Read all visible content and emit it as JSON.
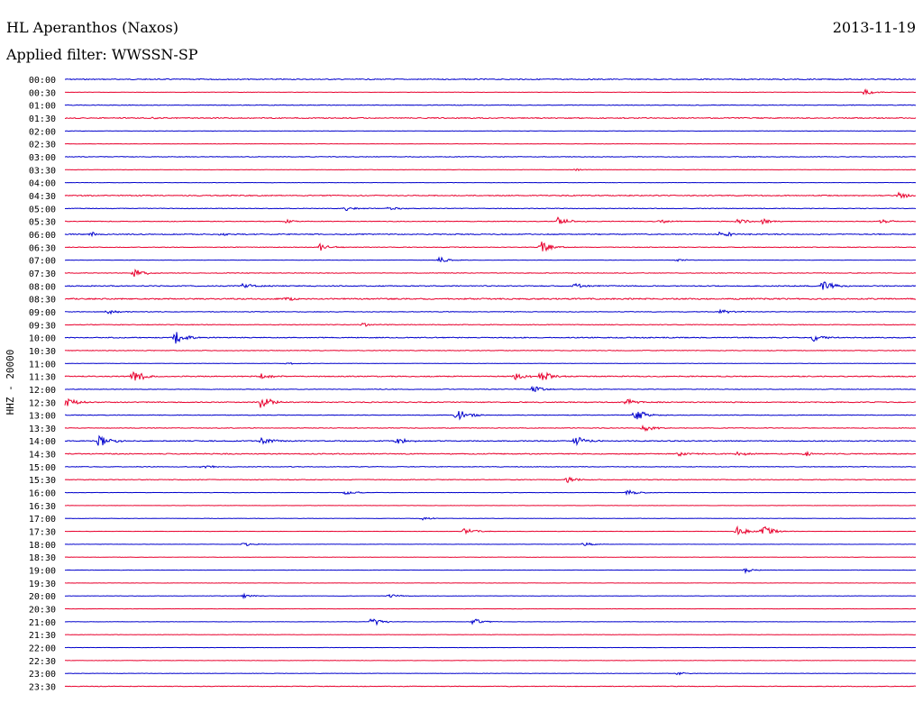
{
  "header": {
    "station": "HL Aperanthos (Naxos)",
    "date": "2013-11-19",
    "filter_prefix": "Applied filter:",
    "filter_name": "WWSSN-SP"
  },
  "chart_data": {
    "type": "line",
    "title": "HL Aperanthos (Naxos)",
    "ylabel": "HHZ - 20000",
    "colors": [
      "#0000cc",
      "#e8002d"
    ],
    "row_labels": [
      "00:00",
      "00:30",
      "01:00",
      "01:30",
      "02:00",
      "02:30",
      "03:00",
      "03:30",
      "04:00",
      "04:30",
      "05:00",
      "05:30",
      "06:00",
      "06:30",
      "07:00",
      "07:30",
      "08:00",
      "08:30",
      "09:00",
      "09:30",
      "10:00",
      "10:30",
      "11:00",
      "11:30",
      "12:00",
      "12:30",
      "13:00",
      "13:30",
      "14:00",
      "14:30",
      "15:00",
      "15:30",
      "16:00",
      "16:30",
      "17:00",
      "17:30",
      "18:00",
      "18:30",
      "19:00",
      "19:30",
      "20:00",
      "20:30",
      "21:00",
      "21:30",
      "22:00",
      "22:30",
      "23:00",
      "23:30"
    ],
    "noise_level": [
      3,
      0,
      2,
      3,
      0,
      1,
      2,
      0,
      1,
      3,
      2,
      2,
      3,
      2,
      1,
      2,
      3,
      4,
      2,
      2,
      3,
      2,
      1,
      3,
      2,
      3,
      2,
      2,
      3,
      3,
      2,
      2,
      1,
      1,
      1,
      1,
      1,
      1,
      1,
      1,
      1,
      1,
      1,
      1,
      1,
      1,
      1,
      2
    ],
    "events": [
      {
        "row": 1,
        "x": 0.94,
        "amp": 0.45
      },
      {
        "row": 3,
        "x": 0.1,
        "amp": 0.12
      },
      {
        "row": 7,
        "x": 0.6,
        "amp": 0.15
      },
      {
        "row": 9,
        "x": 0.98,
        "amp": 0.5
      },
      {
        "row": 10,
        "x": 0.33,
        "amp": 0.3
      },
      {
        "row": 10,
        "x": 0.38,
        "amp": 0.28
      },
      {
        "row": 11,
        "x": 0.26,
        "amp": 0.25
      },
      {
        "row": 11,
        "x": 0.58,
        "amp": 0.65
      },
      {
        "row": 11,
        "x": 0.7,
        "amp": 0.28
      },
      {
        "row": 11,
        "x": 0.79,
        "amp": 0.45
      },
      {
        "row": 11,
        "x": 0.82,
        "amp": 0.4
      },
      {
        "row": 11,
        "x": 0.96,
        "amp": 0.3
      },
      {
        "row": 12,
        "x": 0.03,
        "amp": 0.35
      },
      {
        "row": 12,
        "x": 0.18,
        "amp": 0.3
      },
      {
        "row": 12,
        "x": 0.77,
        "amp": 0.65
      },
      {
        "row": 13,
        "x": 0.3,
        "amp": 0.55
      },
      {
        "row": 13,
        "x": 0.56,
        "amp": 0.85
      },
      {
        "row": 14,
        "x": 0.44,
        "amp": 0.45
      },
      {
        "row": 14,
        "x": 0.72,
        "amp": 0.2
      },
      {
        "row": 15,
        "x": 0.08,
        "amp": 0.7
      },
      {
        "row": 16,
        "x": 0.21,
        "amp": 0.6
      },
      {
        "row": 16,
        "x": 0.6,
        "amp": 0.45
      },
      {
        "row": 16,
        "x": 0.89,
        "amp": 0.8
      },
      {
        "row": 17,
        "x": 0.26,
        "amp": 0.3
      },
      {
        "row": 18,
        "x": 0.05,
        "amp": 0.35
      },
      {
        "row": 18,
        "x": 0.77,
        "amp": 0.45
      },
      {
        "row": 19,
        "x": 0.35,
        "amp": 0.3
      },
      {
        "row": 20,
        "x": 0.13,
        "amp": 0.9
      },
      {
        "row": 20,
        "x": 0.88,
        "amp": 0.6
      },
      {
        "row": 22,
        "x": 0.26,
        "amp": 0.2
      },
      {
        "row": 23,
        "x": 0.08,
        "amp": 1.1
      },
      {
        "row": 23,
        "x": 0.23,
        "amp": 0.55
      },
      {
        "row": 23,
        "x": 0.53,
        "amp": 0.6
      },
      {
        "row": 23,
        "x": 0.56,
        "amp": 0.95
      },
      {
        "row": 24,
        "x": 0.55,
        "amp": 0.5
      },
      {
        "row": 25,
        "x": 0.0,
        "amp": 0.7
      },
      {
        "row": 25,
        "x": 0.23,
        "amp": 1.0
      },
      {
        "row": 25,
        "x": 0.66,
        "amp": 0.55
      },
      {
        "row": 26,
        "x": 0.46,
        "amp": 1.1
      },
      {
        "row": 26,
        "x": 0.67,
        "amp": 1.0
      },
      {
        "row": 27,
        "x": 0.68,
        "amp": 0.5
      },
      {
        "row": 28,
        "x": 0.04,
        "amp": 0.9
      },
      {
        "row": 28,
        "x": 0.23,
        "amp": 0.6
      },
      {
        "row": 28,
        "x": 0.39,
        "amp": 0.5
      },
      {
        "row": 28,
        "x": 0.6,
        "amp": 0.7
      },
      {
        "row": 29,
        "x": 0.72,
        "amp": 0.35
      },
      {
        "row": 29,
        "x": 0.79,
        "amp": 0.3
      },
      {
        "row": 29,
        "x": 0.87,
        "amp": 0.35
      },
      {
        "row": 30,
        "x": 0.16,
        "amp": 0.35
      },
      {
        "row": 31,
        "x": 0.59,
        "amp": 0.45
      },
      {
        "row": 32,
        "x": 0.33,
        "amp": 0.35
      },
      {
        "row": 32,
        "x": 0.66,
        "amp": 0.45
      },
      {
        "row": 34,
        "x": 0.42,
        "amp": 0.25
      },
      {
        "row": 35,
        "x": 0.47,
        "amp": 0.55
      },
      {
        "row": 35,
        "x": 0.79,
        "amp": 0.75
      },
      {
        "row": 35,
        "x": 0.82,
        "amp": 0.9
      },
      {
        "row": 36,
        "x": 0.21,
        "amp": 0.3
      },
      {
        "row": 36,
        "x": 0.61,
        "amp": 0.3
      },
      {
        "row": 38,
        "x": 0.8,
        "amp": 0.35
      },
      {
        "row": 40,
        "x": 0.21,
        "amp": 0.3
      },
      {
        "row": 40,
        "x": 0.38,
        "amp": 0.35
      },
      {
        "row": 42,
        "x": 0.36,
        "amp": 0.7
      },
      {
        "row": 42,
        "x": 0.48,
        "amp": 0.5
      },
      {
        "row": 46,
        "x": 0.72,
        "amp": 0.25
      }
    ]
  }
}
